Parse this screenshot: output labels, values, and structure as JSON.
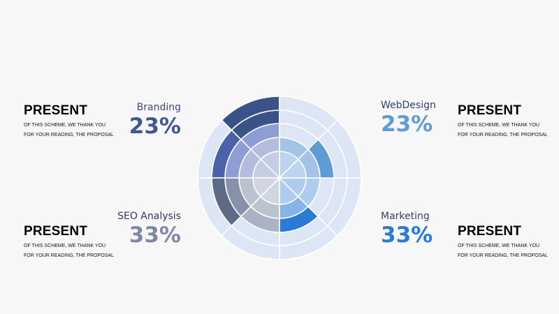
{
  "sections": [
    {
      "id": "branding",
      "label": "Branding",
      "percent": "23%",
      "color": "#3f5795",
      "label_color": "#3a4a7a"
    },
    {
      "id": "webdesign",
      "label": "WebDesign",
      "percent": "23%",
      "color": "#5f9bd4",
      "label_color": "#2f4270"
    },
    {
      "id": "seo",
      "label": "SEO Analysis",
      "percent": "33%",
      "color": "#7d8aa6",
      "label_color": "#2f3a5c"
    },
    {
      "id": "marketing",
      "label": "Marketing",
      "percent": "33%",
      "color": "#2a7ad8",
      "label_color": "#2f4270"
    }
  ],
  "present_blocks": [
    {
      "title": "PRESENT",
      "line1": "OF THIS SCHEME, WE THANK YOU",
      "line2": "FOR YOUR READING, THE PROPOSAL"
    },
    {
      "title": "PRESENT",
      "line1": "OF THIS SCHEME, WE THANK YOU",
      "line2": "FOR YOUR READING, THE PROPOSAL"
    },
    {
      "title": "PRESENT",
      "line1": "OF THIS SCHEME, WE THANK YOU",
      "line2": "FOR YOUR READING, THE PROPOSAL"
    },
    {
      "title": "PRESENT",
      "line1": "OF THIS SCHEME, WE THANK YOU",
      "line2": "FOR YOUR READING, THE PROPOSAL"
    }
  ],
  "wheel": {
    "sectors": [
      {
        "name": "wheel-sector-1",
        "rings": [
          "#c4cde3",
          "#b3bcdc",
          "#8e9ed2",
          "#3a5288",
          "#3a5288"
        ]
      },
      {
        "name": "wheel-sector-2",
        "rings": [
          "#c4cde3",
          "#b3bcdc",
          "#8e9ed2",
          "#4a62aa",
          "#dde6f5"
        ]
      },
      {
        "name": "wheel-sector-3",
        "rings": [
          "#d0d5df",
          "#bcc3d0",
          "#8592a9",
          "#5d6b86",
          "#dde6f5"
        ]
      },
      {
        "name": "wheel-sector-4",
        "rings": [
          "#d0d5df",
          "#bcc3d0",
          "#aab3c5",
          "#dde6f5",
          "#dde6f5"
        ]
      },
      {
        "name": "wheel-sector-5",
        "rings": [
          "#aeccee",
          "#85b3ea",
          "#2a7ad8",
          "#dde6f5",
          "#dde6f5"
        ]
      },
      {
        "name": "wheel-sector-6",
        "rings": [
          "#aeccee",
          "#aeccee",
          "#dde6f5",
          "#dde6f5",
          "#dde6f5"
        ]
      },
      {
        "name": "wheel-sector-7",
        "rings": [
          "#bcd4ed",
          "#a3c4e4",
          "#5f9bd4",
          "#dde6f5",
          "#dde6f5"
        ]
      },
      {
        "name": "wheel-sector-8",
        "rings": [
          "#bcd4ed",
          "#a3c4e4",
          "#dde6f5",
          "#dde6f5",
          "#dde6f5"
        ]
      }
    ]
  }
}
